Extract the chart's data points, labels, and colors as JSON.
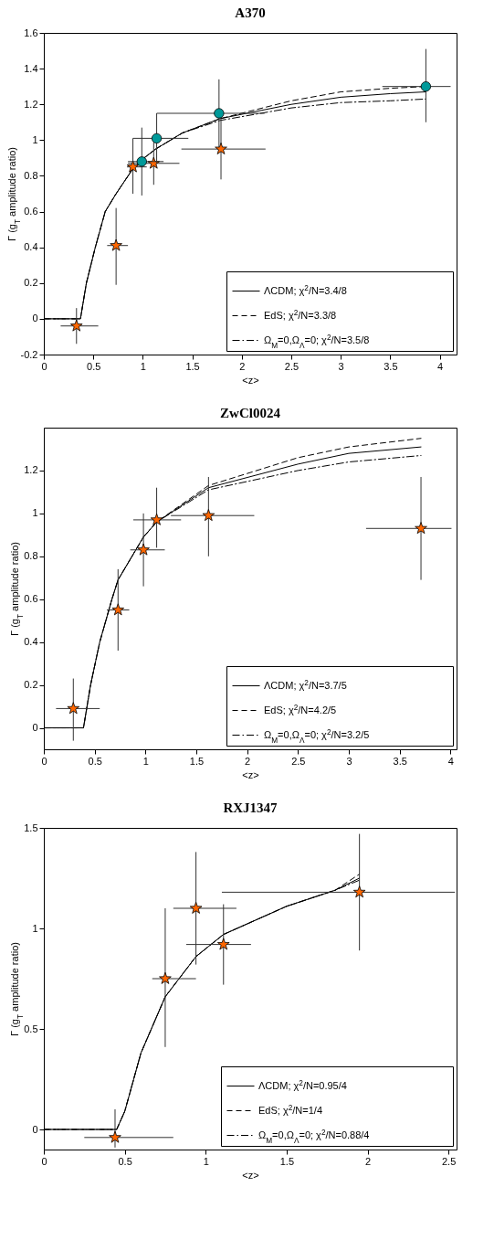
{
  "chart_data": [
    {
      "type": "scatter",
      "title": "A370",
      "xlabel": "<z>",
      "ylabel": "Γ (g$_{T}$ amplitude ratio)",
      "xlim": [
        0,
        4.17
      ],
      "ylim": [
        -0.2,
        1.6
      ],
      "xticks": [
        0,
        0.5,
        1,
        1.5,
        2,
        2.5,
        3,
        3.5,
        4
      ],
      "yticks": [
        -0.2,
        0,
        0.2,
        0.4,
        0.6,
        0.8,
        1,
        1.2,
        1.4,
        1.6
      ],
      "legend": "bottom right",
      "series": [
        {
          "type": "line",
          "name": "ΛCDM;  χ$^{2}$/N=3.4/8",
          "color": "#000000",
          "line_style": "solid",
          "x": [
            0,
            0.37,
            0.43,
            0.52,
            0.62,
            0.73,
            0.9,
            0.99,
            1.13,
            1.4,
            1.78,
            2.5,
            3.0,
            3.5,
            3.86
          ],
          "values": [
            0,
            0,
            0.2,
            0.4,
            0.6,
            0.7,
            0.84,
            0.89,
            0.95,
            1.04,
            1.12,
            1.2,
            1.24,
            1.26,
            1.27
          ]
        },
        {
          "type": "line",
          "name": "EdS;  χ$^{2}$/N=3.3/8",
          "color": "#000000",
          "line_style": "dashed",
          "x": [
            0,
            0.37,
            0.43,
            0.52,
            0.62,
            0.73,
            0.9,
            0.99,
            1.13,
            1.4,
            1.78,
            2.5,
            3.0,
            3.5,
            3.86
          ],
          "values": [
            0,
            0,
            0.2,
            0.4,
            0.6,
            0.7,
            0.84,
            0.89,
            0.95,
            1.04,
            1.12,
            1.22,
            1.27,
            1.29,
            1.3
          ]
        },
        {
          "type": "line",
          "name": "Ω$_{M}$=0,Ω$_{Λ}$=0;  χ$^{2}$/N=3.5/8",
          "color": "#000000",
          "line_style": "dashdot",
          "x": [
            0,
            0.37,
            0.43,
            0.52,
            0.62,
            0.73,
            0.9,
            0.99,
            1.13,
            1.4,
            1.78,
            2.5,
            3.0,
            3.5,
            3.86
          ],
          "values": [
            0,
            0,
            0.2,
            0.4,
            0.6,
            0.7,
            0.84,
            0.89,
            0.95,
            1.04,
            1.11,
            1.18,
            1.21,
            1.22,
            1.23
          ]
        },
        {
          "type": "scatter",
          "color": "#ff6600",
          "marker": "star",
          "x": [
            0.33,
            0.73,
            0.9,
            1.11,
            1.79
          ],
          "values": [
            -0.04,
            0.41,
            0.85,
            0.87,
            0.95
          ],
          "errors": [
            [
              -0.14,
              0.06
            ],
            [
              0.19,
              0.62
            ],
            [
              0.7,
              1.01
            ],
            [
              0.75,
              0.99
            ],
            [
              0.78,
              1.12
            ]
          ],
          "xerrors": [
            [
              0.17,
              0.55
            ],
            [
              0.64,
              0.85
            ],
            [
              0.84,
              1.04
            ],
            [
              0.85,
              1.37
            ],
            [
              1.39,
              2.24
            ]
          ]
        },
        {
          "type": "scatter",
          "color": "#009999",
          "marker": "circle",
          "x": [
            0.99,
            1.14,
            1.77,
            3.86
          ],
          "values": [
            0.88,
            1.01,
            1.15,
            1.3
          ],
          "errors": [
            [
              0.69,
              1.07
            ],
            [
              0.87,
              1.15
            ],
            [
              0.96,
              1.34
            ],
            [
              1.1,
              1.51
            ]
          ],
          "xerrors": [
            [
              0.85,
              1.21
            ],
            [
              0.9,
              1.46
            ],
            [
              1.14,
              2.23
            ],
            [
              3.42,
              4.11
            ]
          ]
        }
      ]
    },
    {
      "type": "scatter",
      "title": "ZwCl0024",
      "xlabel": "<z>",
      "ylabel": "Γ (g$_{T}$ amplitude ratio)",
      "xlim": [
        0,
        4.06
      ],
      "ylim": [
        -0.1,
        1.4
      ],
      "xticks": [
        0,
        0.5,
        1,
        1.5,
        2,
        2.5,
        3,
        3.5,
        4
      ],
      "yticks": [
        0,
        0.2,
        0.4,
        0.6,
        0.8,
        1,
        1.2
      ],
      "legend": "bottom right",
      "series": [
        {
          "type": "line",
          "name": "ΛCDM;  χ$^{2}$/N=3.7/5",
          "color": "#000000",
          "line_style": "solid",
          "x": [
            0,
            0.39,
            0.46,
            0.55,
            0.67,
            0.73,
            0.98,
            1.11,
            1.62,
            2.5,
            3.0,
            3.71
          ],
          "values": [
            0,
            0,
            0.2,
            0.4,
            0.6,
            0.69,
            0.89,
            0.96,
            1.12,
            1.23,
            1.28,
            1.31
          ]
        },
        {
          "type": "line",
          "name": "EdS;  χ$^{2}$/N=4.2/5",
          "color": "#000000",
          "line_style": "dashed",
          "x": [
            0,
            0.39,
            0.46,
            0.55,
            0.67,
            0.73,
            0.98,
            1.11,
            1.62,
            2.5,
            3.0,
            3.71
          ],
          "values": [
            0,
            0,
            0.2,
            0.4,
            0.6,
            0.69,
            0.89,
            0.96,
            1.13,
            1.26,
            1.31,
            1.35
          ]
        },
        {
          "type": "line",
          "name": "Ω$_{M}$=0,Ω$_{Λ}$=0;  χ$^{2}$/N=3.2/5",
          "color": "#000000",
          "line_style": "dashdot",
          "x": [
            0,
            0.39,
            0.46,
            0.55,
            0.67,
            0.73,
            0.98,
            1.11,
            1.62,
            2.5,
            3.0,
            3.71
          ],
          "values": [
            0,
            0,
            0.2,
            0.4,
            0.6,
            0.69,
            0.89,
            0.96,
            1.11,
            1.2,
            1.24,
            1.27
          ]
        },
        {
          "type": "scatter",
          "color": "#ff6600",
          "marker": "star",
          "x": [
            0.29,
            0.73,
            0.98,
            1.11,
            1.62,
            3.71
          ],
          "values": [
            0.09,
            0.55,
            0.83,
            0.97,
            0.99,
            0.93
          ],
          "errors": [
            [
              -0.06,
              0.23
            ],
            [
              0.36,
              0.74
            ],
            [
              0.66,
              1.0
            ],
            [
              0.84,
              1.12
            ],
            [
              0.8,
              1.17
            ],
            [
              0.69,
              1.17
            ]
          ],
          "xerrors": [
            [
              0.12,
              0.55
            ],
            [
              0.62,
              0.84
            ],
            [
              0.85,
              1.19
            ],
            [
              0.88,
              1.35
            ],
            [
              1.25,
              2.07
            ],
            [
              3.17,
              4.01
            ]
          ]
        }
      ]
    },
    {
      "type": "scatter",
      "title": "RXJ1347",
      "xlabel": "<z>",
      "ylabel": "Γ (g$_{T}$ amplitude ratio)",
      "xlim": [
        0,
        2.55
      ],
      "ylim": [
        -0.1,
        1.5
      ],
      "xticks": [
        0,
        0.5,
        1,
        1.5,
        2,
        2.5
      ],
      "yticks": [
        0,
        0.5,
        1,
        1.5
      ],
      "legend": "bottom right",
      "series": [
        {
          "type": "line",
          "name": "ΛCDM;  χ$^{2}$/N=0.95/4",
          "color": "#000000",
          "line_style": "solid",
          "x": [
            0,
            0.45,
            0.5,
            0.6,
            0.75,
            0.94,
            1.11,
            1.5,
            1.8,
            1.95
          ],
          "values": [
            0,
            0,
            0.09,
            0.38,
            0.66,
            0.86,
            0.97,
            1.11,
            1.19,
            1.25
          ]
        },
        {
          "type": "line",
          "name": "EdS;  χ$^{2}$/N=1/4",
          "color": "#000000",
          "line_style": "dashed",
          "x": [
            0,
            0.45,
            0.5,
            0.6,
            0.75,
            0.94,
            1.11,
            1.5,
            1.8,
            1.95
          ],
          "values": [
            0,
            0,
            0.09,
            0.38,
            0.66,
            0.86,
            0.97,
            1.11,
            1.19,
            1.27
          ]
        },
        {
          "type": "line",
          "name": "Ω$_{M}$=0,Ω$_{Λ}$=0;  χ$^{2}$/N=0.88/4",
          "color": "#000000",
          "line_style": "dashdot",
          "x": [
            0,
            0.45,
            0.5,
            0.6,
            0.75,
            0.94,
            1.11,
            1.5,
            1.8,
            1.95
          ],
          "values": [
            0,
            0,
            0.09,
            0.38,
            0.66,
            0.86,
            0.97,
            1.11,
            1.19,
            1.24
          ]
        },
        {
          "type": "scatter",
          "color": "#ff6600",
          "marker": "star",
          "x": [
            0.44,
            0.75,
            0.94,
            1.11,
            1.95
          ],
          "values": [
            -0.04,
            0.75,
            1.1,
            0.92,
            1.18
          ],
          "errors": [
            [
              -0.09,
              0.1
            ],
            [
              0.41,
              1.1
            ],
            [
              0.82,
              1.38
            ],
            [
              0.72,
              1.12
            ],
            [
              0.89,
              1.47
            ]
          ],
          "xerrors": [
            [
              0.25,
              0.8
            ],
            [
              0.67,
              0.94
            ],
            [
              0.8,
              1.19
            ],
            [
              0.88,
              1.28
            ],
            [
              1.1,
              2.54
            ]
          ]
        }
      ]
    }
  ]
}
